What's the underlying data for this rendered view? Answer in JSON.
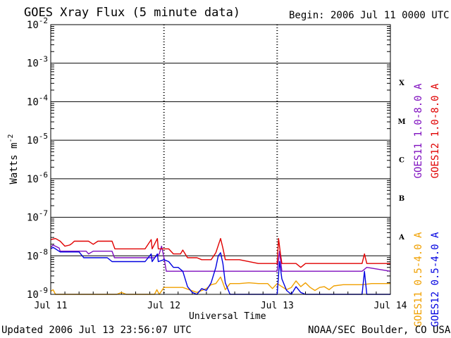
{
  "header": {
    "title": "GOES Xray Flux (5 minute data)",
    "begin_label": "Begin:  2006 Jul 11 0000 UTC"
  },
  "footer": {
    "updated": "Updated 2006 Jul 13 23:56:07 UTC",
    "credit": "NOAA/SEC Boulder, CO USA"
  },
  "chart_data": {
    "type": "line",
    "title": "GOES Xray Flux (5 minute data)",
    "xlabel": "Universal Time",
    "ylabel": "Watts m-2",
    "y_scale": "log",
    "ylim": [
      1e-09,
      0.01
    ],
    "xlim": [
      0,
      72
    ],
    "x_unit": "hours since 2006 Jul 11 0000 UTC",
    "x_ticks": [
      {
        "x": 0,
        "label": "Jul 11"
      },
      {
        "x": 24,
        "label": "Jul 12"
      },
      {
        "x": 48,
        "label": "Jul 13"
      },
      {
        "x": 72,
        "label": "Jul 14"
      }
    ],
    "y_ticks": [
      {
        "exp": -9,
        "base": "10",
        "sup": "-9"
      },
      {
        "exp": -8,
        "base": "10",
        "sup": "-8"
      },
      {
        "exp": -7,
        "base": "10",
        "sup": "-7"
      },
      {
        "exp": -6,
        "base": "10",
        "sup": "-6"
      },
      {
        "exp": -5,
        "base": "10",
        "sup": "-5"
      },
      {
        "exp": -4,
        "base": "10",
        "sup": "-4"
      },
      {
        "exp": -3,
        "base": "10",
        "sup": "-3"
      },
      {
        "exp": -2,
        "base": "10",
        "sup": "-2"
      }
    ],
    "flare_classes": [
      {
        "label": "A",
        "exp": -7.5
      },
      {
        "label": "B",
        "exp": -6.5
      },
      {
        "label": "C",
        "exp": -5.5
      },
      {
        "label": "M",
        "exp": -4.5
      },
      {
        "label": "X",
        "exp": -3.5
      }
    ],
    "grid": "horizontal lines at each decade; dotted vertical lines at day boundaries",
    "legend_position": "right, vertical",
    "series": [
      {
        "name": "GOES11 1.0-8.0 A",
        "color": "#7f0fbf",
        "points": [
          [
            0,
            -7.78
          ],
          [
            0.5,
            -7.72
          ],
          [
            1,
            -7.75
          ],
          [
            1.8,
            -7.8
          ],
          [
            2,
            -7.88
          ],
          [
            6,
            -7.88
          ],
          [
            7.5,
            -7.88
          ],
          [
            8,
            -7.95
          ],
          [
            9,
            -7.88
          ],
          [
            10,
            -7.88
          ],
          [
            13,
            -7.88
          ],
          [
            13.5,
            -8.05
          ],
          [
            14,
            -8.05
          ],
          [
            17,
            -8.05
          ],
          [
            20,
            -8.05
          ],
          [
            22,
            -8.05
          ],
          [
            23,
            -7.95
          ],
          [
            23.5,
            -7.75
          ],
          [
            24,
            -8.05
          ],
          [
            24.5,
            -8.4
          ],
          [
            28,
            -8.4
          ],
          [
            33,
            -8.4
          ],
          [
            36,
            -8.4
          ],
          [
            40,
            -8.4
          ],
          [
            44,
            -8.4
          ],
          [
            48,
            -8.4
          ],
          [
            48.5,
            -7.88
          ],
          [
            49,
            -8.4
          ],
          [
            52,
            -8.4
          ],
          [
            56,
            -8.4
          ],
          [
            60,
            -8.4
          ],
          [
            64,
            -8.4
          ],
          [
            66,
            -8.4
          ],
          [
            67,
            -8.3
          ],
          [
            72,
            -8.4
          ]
        ]
      },
      {
        "name": "GOES12 1.0-8.0 A",
        "color": "#e00000",
        "points": [
          [
            0,
            -7.58
          ],
          [
            1,
            -7.55
          ],
          [
            2,
            -7.62
          ],
          [
            3,
            -7.75
          ],
          [
            4,
            -7.72
          ],
          [
            4.5,
            -7.68
          ],
          [
            5,
            -7.62
          ],
          [
            6,
            -7.62
          ],
          [
            8,
            -7.62
          ],
          [
            9,
            -7.7
          ],
          [
            10,
            -7.62
          ],
          [
            13,
            -7.62
          ],
          [
            13.6,
            -7.82
          ],
          [
            20,
            -7.82
          ],
          [
            21.3,
            -7.58
          ],
          [
            21.5,
            -7.82
          ],
          [
            22.6,
            -7.55
          ],
          [
            22.8,
            -7.82
          ],
          [
            24,
            -7.82
          ],
          [
            25,
            -7.82
          ],
          [
            26,
            -7.95
          ],
          [
            27.5,
            -7.95
          ],
          [
            28,
            -7.85
          ],
          [
            29,
            -8.05
          ],
          [
            30,
            -8.05
          ],
          [
            31,
            -8.05
          ],
          [
            32,
            -8.1
          ],
          [
            33,
            -8.1
          ],
          [
            34,
            -8.1
          ],
          [
            35,
            -7.92
          ],
          [
            36,
            -7.55
          ],
          [
            36.5,
            -7.8
          ],
          [
            37,
            -8.1
          ],
          [
            40,
            -8.1
          ],
          [
            44,
            -8.2
          ],
          [
            48,
            -8.2
          ],
          [
            48.3,
            -7.55
          ],
          [
            48.7,
            -7.95
          ],
          [
            49,
            -8.2
          ],
          [
            50,
            -8.2
          ],
          [
            51,
            -8.2
          ],
          [
            52,
            -8.2
          ],
          [
            53,
            -8.3
          ],
          [
            54,
            -8.2
          ],
          [
            56,
            -8.2
          ],
          [
            60,
            -8.2
          ],
          [
            64,
            -8.2
          ],
          [
            66,
            -8.2
          ],
          [
            66.5,
            -7.95
          ],
          [
            67,
            -8.2
          ],
          [
            72,
            -8.2
          ]
        ]
      },
      {
        "name": "GOES11 0.5-4.0 A",
        "color": "#f0a000",
        "points": [
          [
            0,
            -8.92
          ],
          [
            0.5,
            -8.88
          ],
          [
            1,
            -9.0
          ],
          [
            14,
            -9.0
          ],
          [
            15,
            -8.95
          ],
          [
            16,
            -9.0
          ],
          [
            22,
            -9.0
          ],
          [
            22.5,
            -8.88
          ],
          [
            23,
            -9.0
          ],
          [
            24,
            -8.82
          ],
          [
            26,
            -8.82
          ],
          [
            28,
            -8.82
          ],
          [
            31,
            -8.95
          ],
          [
            33,
            -8.85
          ],
          [
            34,
            -8.75
          ],
          [
            35,
            -8.72
          ],
          [
            36,
            -8.55
          ],
          [
            36.5,
            -8.7
          ],
          [
            37,
            -8.88
          ],
          [
            38,
            -8.72
          ],
          [
            40,
            -8.72
          ],
          [
            42,
            -8.7
          ],
          [
            44,
            -8.72
          ],
          [
            46,
            -8.72
          ],
          [
            47,
            -8.85
          ],
          [
            48,
            -8.72
          ],
          [
            49,
            -8.8
          ],
          [
            50,
            -8.88
          ],
          [
            51,
            -8.82
          ],
          [
            52,
            -8.65
          ],
          [
            53,
            -8.8
          ],
          [
            54,
            -8.7
          ],
          [
            55,
            -8.82
          ],
          [
            56,
            -8.9
          ],
          [
            57,
            -8.82
          ],
          [
            58,
            -8.8
          ],
          [
            59,
            -8.88
          ],
          [
            60,
            -8.78
          ],
          [
            62,
            -8.75
          ],
          [
            64,
            -8.75
          ],
          [
            66,
            -8.75
          ],
          [
            68,
            -8.72
          ],
          [
            70,
            -8.72
          ],
          [
            72,
            -8.72
          ]
        ]
      },
      {
        "name": "GOES12 0.5-4.0 A",
        "color": "#0000e0",
        "points": [
          [
            0,
            -7.82
          ],
          [
            0.5,
            -7.78
          ],
          [
            1,
            -7.82
          ],
          [
            2,
            -7.9
          ],
          [
            4,
            -7.9
          ],
          [
            6,
            -7.9
          ],
          [
            7,
            -8.05
          ],
          [
            8,
            -8.05
          ],
          [
            9,
            -8.05
          ],
          [
            10,
            -8.05
          ],
          [
            12,
            -8.05
          ],
          [
            13,
            -8.15
          ],
          [
            14,
            -8.15
          ],
          [
            20,
            -8.15
          ],
          [
            21.3,
            -7.95
          ],
          [
            21.5,
            -8.15
          ],
          [
            22.6,
            -7.95
          ],
          [
            22.8,
            -8.15
          ],
          [
            24,
            -8.1
          ],
          [
            25,
            -8.15
          ],
          [
            26,
            -8.3
          ],
          [
            27,
            -8.3
          ],
          [
            28,
            -8.4
          ],
          [
            29,
            -8.8
          ],
          [
            30,
            -8.95
          ],
          [
            31,
            -9.0
          ],
          [
            32,
            -8.85
          ],
          [
            33,
            -8.9
          ],
          [
            34,
            -8.7
          ],
          [
            35,
            -8.3
          ],
          [
            35.5,
            -8.0
          ],
          [
            36,
            -7.92
          ],
          [
            36.5,
            -8.2
          ],
          [
            37,
            -8.7
          ],
          [
            38,
            -9.0
          ],
          [
            44,
            -9.0
          ],
          [
            48,
            -9.0
          ],
          [
            48.5,
            -8.15
          ],
          [
            49,
            -8.6
          ],
          [
            50,
            -8.9
          ],
          [
            51,
            -9.0
          ],
          [
            52,
            -8.8
          ],
          [
            53,
            -8.95
          ],
          [
            54,
            -9.0
          ],
          [
            56,
            -9.0
          ],
          [
            60,
            -9.0
          ],
          [
            64,
            -9.0
          ],
          [
            66,
            -9.0
          ],
          [
            66.5,
            -8.4
          ],
          [
            67,
            -9.0
          ],
          [
            72,
            -9.0
          ]
        ]
      }
    ]
  }
}
